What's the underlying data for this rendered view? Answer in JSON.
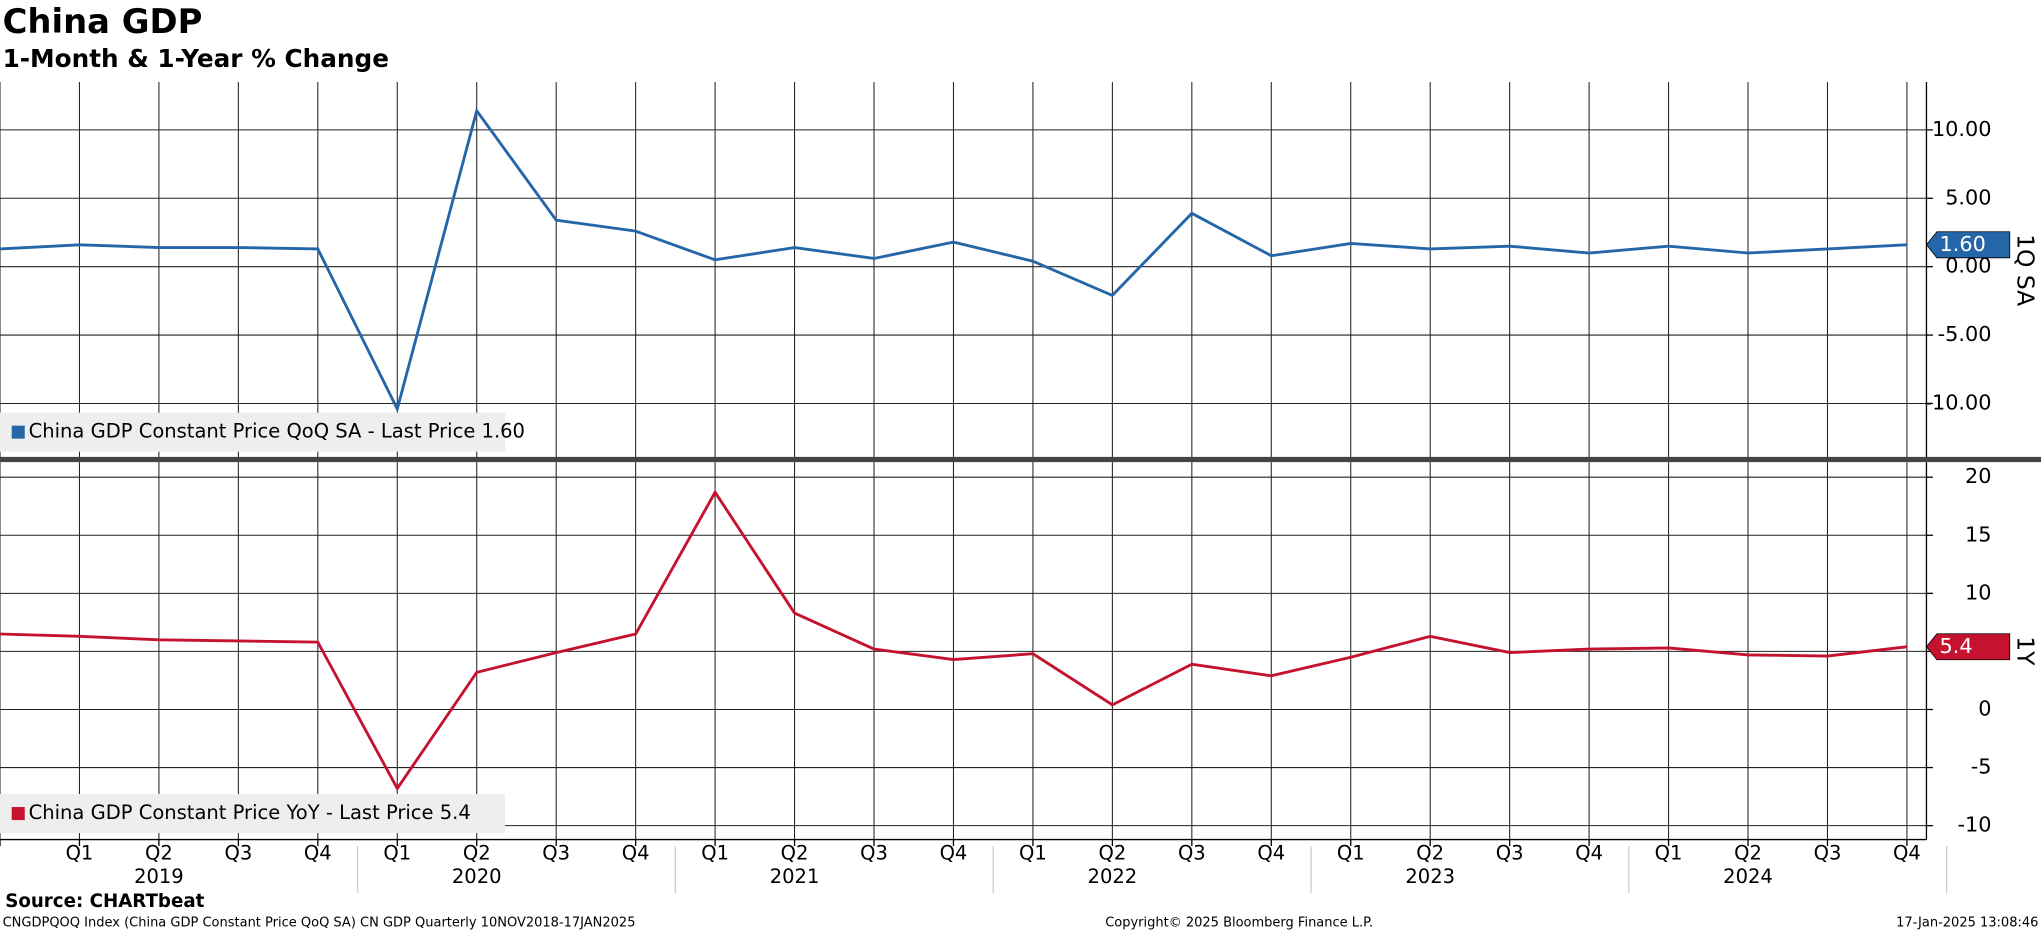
{
  "header": {
    "title": "China GDP",
    "subtitle": "1-Month & 1-Year % Change"
  },
  "footer": {
    "source": "Source: CHARTbeat",
    "ticker": "CNGDPQOQ Index (China GDP Constant Price QoQ SA) CN GDP  Quarterly 10NOV2018-17JAN2025",
    "copyright": "Copyright© 2025 Bloomberg Finance L.P.",
    "timestamp": "17-Jan-2025 13:08:46"
  },
  "chart_data": [
    {
      "type": "line",
      "axis_label": "1Q SA",
      "grid": true,
      "categories": [
        null,
        "Q1",
        "Q2",
        "Q3",
        "Q4",
        "Q1",
        "Q2",
        "Q3",
        "Q4",
        "Q1",
        "Q2",
        "Q3",
        "Q4",
        "Q1",
        "Q2",
        "Q3",
        "Q4",
        "Q1",
        "Q2",
        "Q3",
        "Q4",
        "Q1",
        "Q2",
        "Q3",
        "Q4"
      ],
      "years": [
        "2019",
        "2020",
        "2021",
        "2022",
        "2023",
        "2024"
      ],
      "series": [
        {
          "name": "China GDP Constant Price QoQ SA - Last Price 1.60",
          "color": "#2566a8",
          "last_label": "1.60",
          "values": [
            1.3,
            1.6,
            1.4,
            1.4,
            1.3,
            -10.4,
            11.4,
            3.4,
            2.6,
            0.5,
            1.4,
            0.6,
            1.8,
            0.4,
            -2.1,
            3.9,
            0.8,
            1.7,
            1.3,
            1.5,
            1.0,
            1.5,
            1.0,
            1.3,
            1.6
          ]
        }
      ],
      "ylim": [
        -14.0,
        13.5
      ],
      "yticks": [
        {
          "value": 10,
          "label": "10.00"
        },
        {
          "value": 5,
          "label": "5.00"
        },
        {
          "value": 0,
          "label": "0.00"
        },
        {
          "value": -5,
          "label": "-5.00"
        },
        {
          "value": -10,
          "label": "-10.00"
        }
      ]
    },
    {
      "type": "line",
      "axis_label": "1Y",
      "grid": true,
      "categories": [
        null,
        "Q1",
        "Q2",
        "Q3",
        "Q4",
        "Q1",
        "Q2",
        "Q3",
        "Q4",
        "Q1",
        "Q2",
        "Q3",
        "Q4",
        "Q1",
        "Q2",
        "Q3",
        "Q4",
        "Q1",
        "Q2",
        "Q3",
        "Q4",
        "Q1",
        "Q2",
        "Q3",
        "Q4"
      ],
      "series": [
        {
          "name": "China GDP Constant Price YoY - Last Price 5.4",
          "color": "#c4122f",
          "last_label": "5.4",
          "values": [
            6.5,
            6.3,
            6.0,
            5.9,
            5.8,
            -6.8,
            3.2,
            4.9,
            6.5,
            18.7,
            8.3,
            5.2,
            4.3,
            4.8,
            0.4,
            3.9,
            2.9,
            4.5,
            6.3,
            4.9,
            5.2,
            5.3,
            4.7,
            4.6,
            5.4
          ]
        }
      ],
      "ylim": [
        -11.2,
        21.3
      ],
      "yticks": [
        20,
        15,
        10,
        5,
        0,
        -5,
        -10
      ]
    }
  ]
}
